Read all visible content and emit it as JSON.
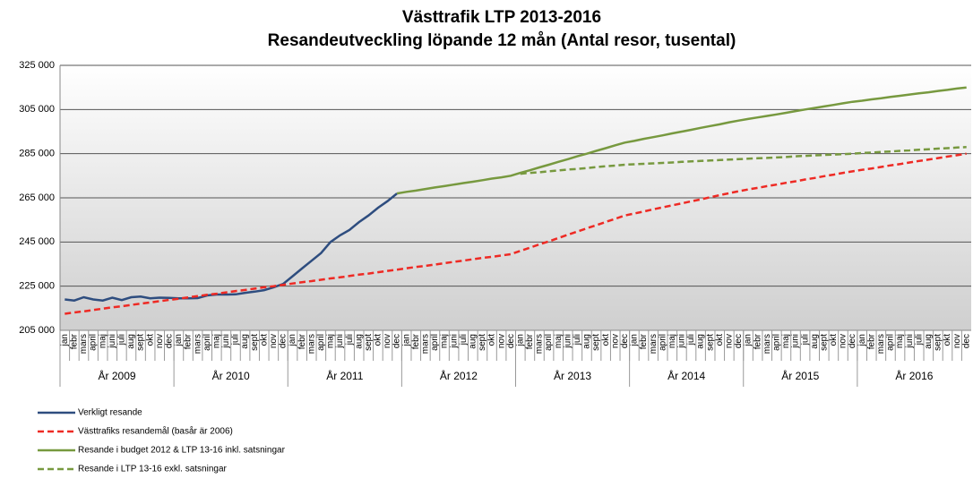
{
  "chart_data": {
    "type": "line",
    "title": "Västtrafik  LTP 2013-2016",
    "subtitle": "Resandeutveckling löpande 12 mån (Antal resor, tusental)",
    "categories": [
      "jan",
      "febr",
      "mars",
      "april",
      "maj",
      "juni",
      "juli",
      "aug",
      "sept",
      "okt",
      "nov",
      "dec",
      "jan",
      "febr",
      "mars",
      "april",
      "maj",
      "juni",
      "juli",
      "aug",
      "sept",
      "okt",
      "nov",
      "dec",
      "jan",
      "febr",
      "mars",
      "april",
      "maj",
      "juni",
      "juli",
      "aug",
      "sept",
      "okt",
      "nov",
      "dec",
      "jan",
      "febr",
      "mars",
      "april",
      "maj",
      "juni",
      "juli",
      "aug",
      "sept",
      "okt",
      "nov",
      "dec",
      "jan",
      "febr",
      "mars",
      "april",
      "maj",
      "juni",
      "juli",
      "aug",
      "sept",
      "okt",
      "nov",
      "dec",
      "jan",
      "febr",
      "mars",
      "april",
      "maj",
      "juni",
      "juli",
      "aug",
      "sept",
      "okt",
      "nov",
      "dec",
      "jan",
      "febr",
      "mars",
      "april",
      "maj",
      "juni",
      "juli",
      "aug",
      "sept",
      "okt",
      "nov",
      "dec",
      "jan",
      "febr",
      "mars",
      "april",
      "maj",
      "juni",
      "juli",
      "aug",
      "sept",
      "okt",
      "nov",
      "dec"
    ],
    "year_groups": [
      "År 2009",
      "År 2010",
      "År 2011",
      "År 2012",
      "År 2013",
      "År 2014",
      "År 2015",
      "År 2016"
    ],
    "ylim": [
      205000,
      325000
    ],
    "yticks": [
      {
        "value": 205000,
        "label": "205 000"
      },
      {
        "value": 225000,
        "label": "225 000"
      },
      {
        "value": 245000,
        "label": "245 000"
      },
      {
        "value": 265000,
        "label": "265 000"
      },
      {
        "value": 285000,
        "label": "285 000"
      },
      {
        "value": 305000,
        "label": "305 000"
      },
      {
        "value": 325000,
        "label": "325 000"
      }
    ],
    "grid": true,
    "series": [
      {
        "name": "Verkligt resande",
        "color": "#2e4d7f",
        "style": "solid",
        "values": [
          219000,
          218500,
          220000,
          219000,
          218500,
          219800,
          218700,
          220000,
          220300,
          219500,
          219800,
          219700,
          219500,
          219500,
          219600,
          220800,
          221200,
          221200,
          221300,
          222000,
          222500,
          223200,
          224500,
          226000,
          229500,
          233000,
          236500,
          240000,
          245000,
          248000,
          250500,
          254000,
          257000,
          260500,
          263500,
          267000,
          null,
          null,
          null,
          null,
          null,
          null,
          null,
          null,
          null,
          null,
          null,
          null,
          null,
          null,
          null,
          null,
          null,
          null,
          null,
          null,
          null,
          null,
          null,
          null,
          null,
          null,
          null,
          null,
          null,
          null,
          null,
          null,
          null,
          null,
          null,
          null,
          null,
          null,
          null,
          null,
          null,
          null,
          null,
          null,
          null,
          null,
          null,
          null,
          null,
          null,
          null,
          null,
          null,
          null,
          null,
          null,
          null,
          null,
          null,
          null
        ]
      },
      {
        "name": "Västtrafiks resandemål (basår är 2006)",
        "color": "#ee2a24",
        "style": "dashed",
        "values": [
          212500,
          213100,
          213600,
          214200,
          214800,
          215400,
          215900,
          216500,
          217100,
          217600,
          218200,
          218800,
          219300,
          219900,
          220500,
          221100,
          221600,
          222200,
          222800,
          223300,
          223900,
          224500,
          225000,
          225600,
          226200,
          226800,
          227300,
          227900,
          228500,
          229000,
          229600,
          230200,
          230700,
          231300,
          231900,
          232500,
          233100,
          233700,
          234200,
          234800,
          235400,
          236000,
          236600,
          237200,
          237800,
          238300,
          238900,
          239500,
          241000,
          242400,
          243900,
          245300,
          246800,
          248300,
          249700,
          251200,
          252600,
          254100,
          255500,
          257000,
          257900,
          258800,
          259800,
          260700,
          261600,
          262500,
          263400,
          264300,
          265300,
          266200,
          267100,
          268000,
          268800,
          269500,
          270300,
          271000,
          271800,
          272500,
          273300,
          274000,
          274800,
          275500,
          276300,
          277000,
          277700,
          278300,
          279000,
          279700,
          280300,
          281000,
          281700,
          282300,
          283000,
          283700,
          284300,
          285000
        ]
      },
      {
        "name": "Resande i budget 2012 & LTP 13-16 inkl. satsningar",
        "color": "#77993f",
        "style": "solid",
        "values": [
          null,
          null,
          null,
          null,
          null,
          null,
          null,
          null,
          null,
          null,
          null,
          null,
          null,
          null,
          null,
          null,
          null,
          null,
          null,
          null,
          null,
          null,
          null,
          null,
          null,
          null,
          null,
          null,
          null,
          null,
          null,
          null,
          null,
          null,
          null,
          267000,
          267700,
          268300,
          269000,
          269700,
          270300,
          271000,
          271700,
          272300,
          273000,
          273700,
          274300,
          275000,
          276300,
          277500,
          278800,
          280000,
          281300,
          282500,
          283800,
          285000,
          286300,
          287500,
          288800,
          290000,
          290800,
          291700,
          292500,
          293300,
          294200,
          295000,
          295800,
          296700,
          297500,
          298300,
          299200,
          300000,
          300700,
          301400,
          302100,
          302800,
          303500,
          304300,
          305000,
          305700,
          306400,
          307100,
          307800,
          308500,
          309000,
          309600,
          310100,
          310700,
          311200,
          311800,
          312300,
          312800,
          313400,
          313900,
          314500,
          315000
        ]
      },
      {
        "name": "Resande i LTP 13-16 exkl. satsningar",
        "color": "#77993f",
        "style": "dashed",
        "values": [
          null,
          null,
          null,
          null,
          null,
          null,
          null,
          null,
          null,
          null,
          null,
          null,
          null,
          null,
          null,
          null,
          null,
          null,
          null,
          null,
          null,
          null,
          null,
          null,
          null,
          null,
          null,
          null,
          null,
          null,
          null,
          null,
          null,
          null,
          null,
          null,
          null,
          null,
          null,
          null,
          null,
          null,
          null,
          null,
          null,
          null,
          null,
          null,
          275900,
          276300,
          276600,
          277000,
          277400,
          277800,
          278100,
          278500,
          278900,
          279300,
          279600,
          280000,
          280200,
          280400,
          280600,
          280800,
          281000,
          281300,
          281500,
          281700,
          281900,
          282100,
          282300,
          282500,
          282700,
          282900,
          283100,
          283300,
          283500,
          283800,
          284000,
          284200,
          284400,
          284600,
          284800,
          285000,
          285300,
          285500,
          285800,
          286000,
          286300,
          286500,
          286800,
          287000,
          287300,
          287500,
          287800,
          288000
        ]
      }
    ]
  }
}
